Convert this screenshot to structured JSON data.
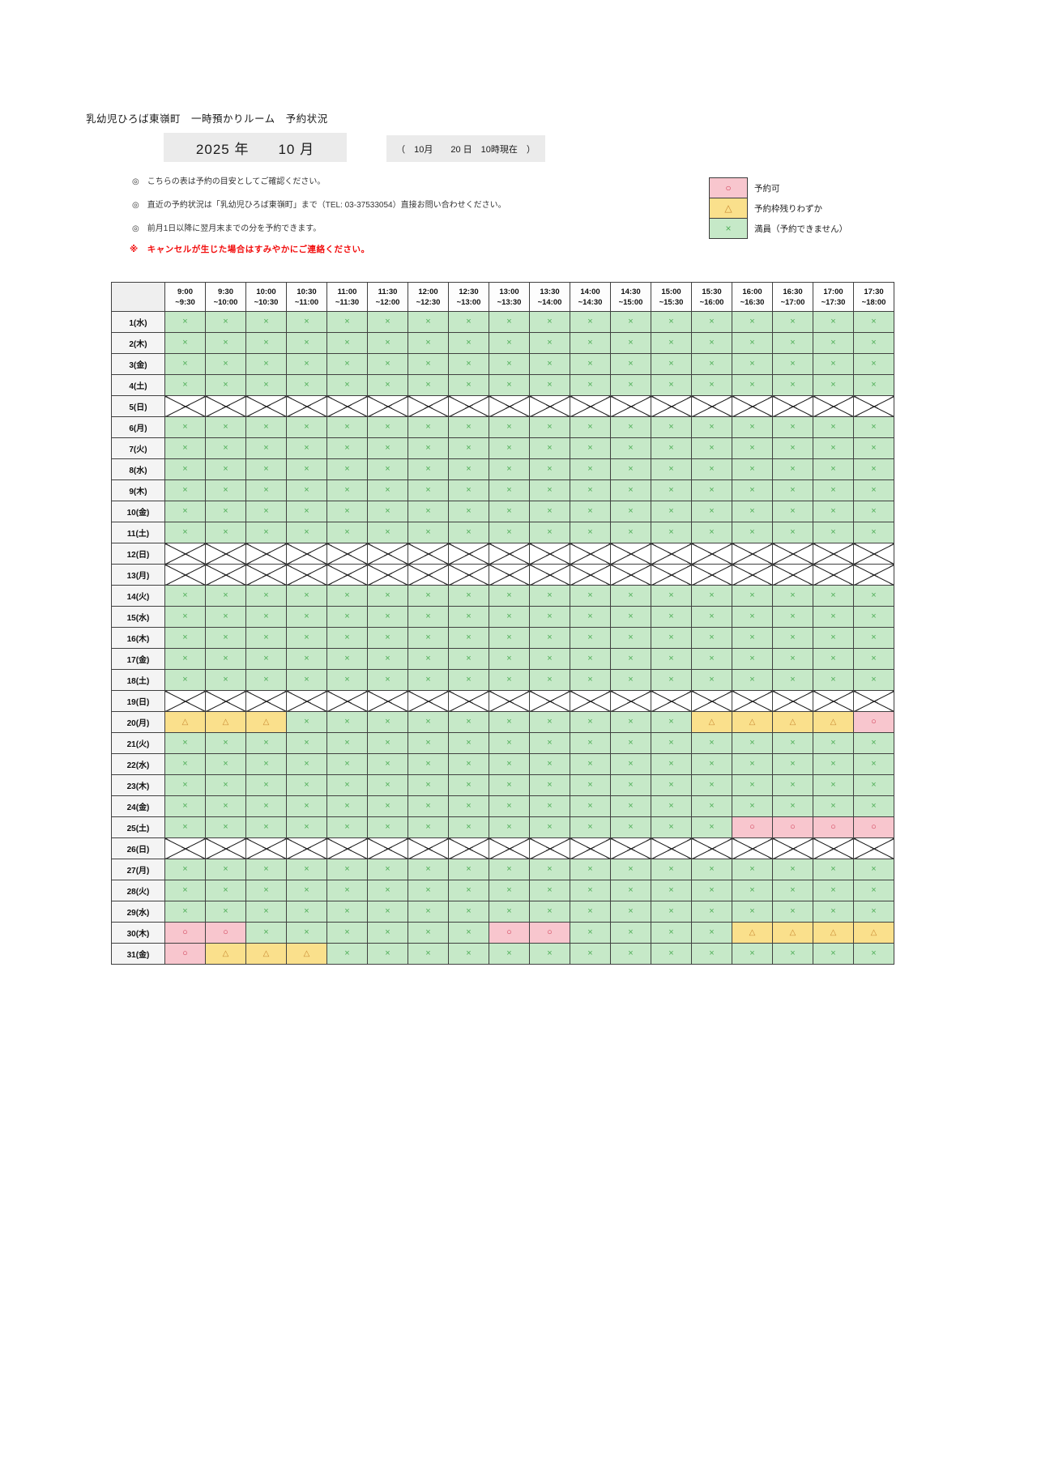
{
  "page": {
    "title": "乳幼児ひろば東嶺町　一時預かりルーム　予約状況",
    "year_label": "2025 年",
    "month_label": "10 月",
    "as_of": "（　10月　　20 日　10時現在　）",
    "cancel_note": "※　キャンセルが生じた場合はすみやかにご連絡ください。"
  },
  "notes": [
    "◎　こちらの表は予約の目安としてご確認ください。",
    "◎　直近の予約状況は「乳幼児ひろば東嶺町」まで（TEL: 03-37533054）直接お問い合わせください。",
    "◎　前月1日以降に翌月末までの分を予約できます。"
  ],
  "legend": [
    {
      "code": "o",
      "symbol": "○",
      "label": "予約可",
      "class": "sw-avail"
    },
    {
      "code": "t",
      "symbol": "△",
      "label": "予約枠残りわずか",
      "class": "sw-few"
    },
    {
      "code": "x",
      "symbol": "×",
      "label": "満員（予約できません）",
      "class": "sw-full"
    }
  ],
  "colors": {
    "available_bg": "#f8c6ce",
    "available_symbol": "#cf3a52",
    "few_bg": "#fae08c",
    "few_symbol": "#c98a33",
    "full_bg": "#c6e9c8",
    "full_symbol": "#4fae57",
    "note_red": "#f20d0d",
    "header_box_gray": "#ebebeb"
  },
  "table": {
    "statuses": {
      "x": {
        "symbol": "×",
        "class": "full"
      },
      "t": {
        "symbol": "△",
        "class": "few"
      },
      "o": {
        "symbol": "○",
        "class": "avail"
      }
    },
    "time_slots": [
      {
        "start": "9:00",
        "end": "~9:30"
      },
      {
        "start": "9:30",
        "end": "~10:00"
      },
      {
        "start": "10:00",
        "end": "~10:30"
      },
      {
        "start": "10:30",
        "end": "~11:00"
      },
      {
        "start": "11:00",
        "end": "~11:30"
      },
      {
        "start": "11:30",
        "end": "~12:00"
      },
      {
        "start": "12:00",
        "end": "~12:30"
      },
      {
        "start": "12:30",
        "end": "~13:00"
      },
      {
        "start": "13:00",
        "end": "~13:30"
      },
      {
        "start": "13:30",
        "end": "~14:00"
      },
      {
        "start": "14:00",
        "end": "~14:30"
      },
      {
        "start": "14:30",
        "end": "~15:00"
      },
      {
        "start": "15:00",
        "end": "~15:30"
      },
      {
        "start": "15:30",
        "end": "~16:00"
      },
      {
        "start": "16:00",
        "end": "~16:30"
      },
      {
        "start": "16:30",
        "end": "~17:00"
      },
      {
        "start": "17:00",
        "end": "~17:30"
      },
      {
        "start": "17:30",
        "end": "~18:00"
      }
    ],
    "rows": [
      {
        "day": "1(水)",
        "cells": "xxxxxxxxxxxxxxxxxx"
      },
      {
        "day": "2(木)",
        "cells": "xxxxxxxxxxxxxxxxxx"
      },
      {
        "day": "3(金)",
        "cells": "xxxxxxxxxxxxxxxxxx"
      },
      {
        "day": "4(土)",
        "cells": "xxxxxxxxxxxxxxxxxx"
      },
      {
        "day": "5(日)",
        "closed": true
      },
      {
        "day": "6(月)",
        "cells": "xxxxxxxxxxxxxxxxxx"
      },
      {
        "day": "7(火)",
        "cells": "xxxxxxxxxxxxxxxxxx"
      },
      {
        "day": "8(水)",
        "cells": "xxxxxxxxxxxxxxxxxx"
      },
      {
        "day": "9(木)",
        "cells": "xxxxxxxxxxxxxxxxxx"
      },
      {
        "day": "10(金)",
        "cells": "xxxxxxxxxxxxxxxxxx"
      },
      {
        "day": "11(土)",
        "cells": "xxxxxxxxxxxxxxxxxx"
      },
      {
        "day": "12(日)",
        "closed": true
      },
      {
        "day": "13(月)",
        "closed": true
      },
      {
        "day": "14(火)",
        "cells": "xxxxxxxxxxxxxxxxxx"
      },
      {
        "day": "15(水)",
        "cells": "xxxxxxxxxxxxxxxxxx"
      },
      {
        "day": "16(木)",
        "cells": "xxxxxxxxxxxxxxxxxx"
      },
      {
        "day": "17(金)",
        "cells": "xxxxxxxxxxxxxxxxxx"
      },
      {
        "day": "18(土)",
        "cells": "xxxxxxxxxxxxxxxxxx"
      },
      {
        "day": "19(日)",
        "closed": true
      },
      {
        "day": "20(月)",
        "cells": "tttxxxxxxxxxxtttto"
      },
      {
        "day": "21(火)",
        "cells": "xxxxxxxxxxxxxxxxxx"
      },
      {
        "day": "22(水)",
        "cells": "xxxxxxxxxxxxxxxxxx"
      },
      {
        "day": "23(木)",
        "cells": "xxxxxxxxxxxxxxxxxx"
      },
      {
        "day": "24(金)",
        "cells": "xxxxxxxxxxxxxxxxxx"
      },
      {
        "day": "25(土)",
        "cells": "xxxxxxxxxxxxxxoooo"
      },
      {
        "day": "26(日)",
        "closed": true
      },
      {
        "day": "27(月)",
        "cells": "xxxxxxxxxxxxxxxxxx"
      },
      {
        "day": "28(火)",
        "cells": "xxxxxxxxxxxxxxxxxx"
      },
      {
        "day": "29(水)",
        "cells": "xxxxxxxxxxxxxxxxxx"
      },
      {
        "day": "30(木)",
        "cells": "ooxxxxxxooxxxxtttt"
      },
      {
        "day": "31(金)",
        "cells": "otttxxxxxxxxxxxxxx"
      }
    ]
  }
}
